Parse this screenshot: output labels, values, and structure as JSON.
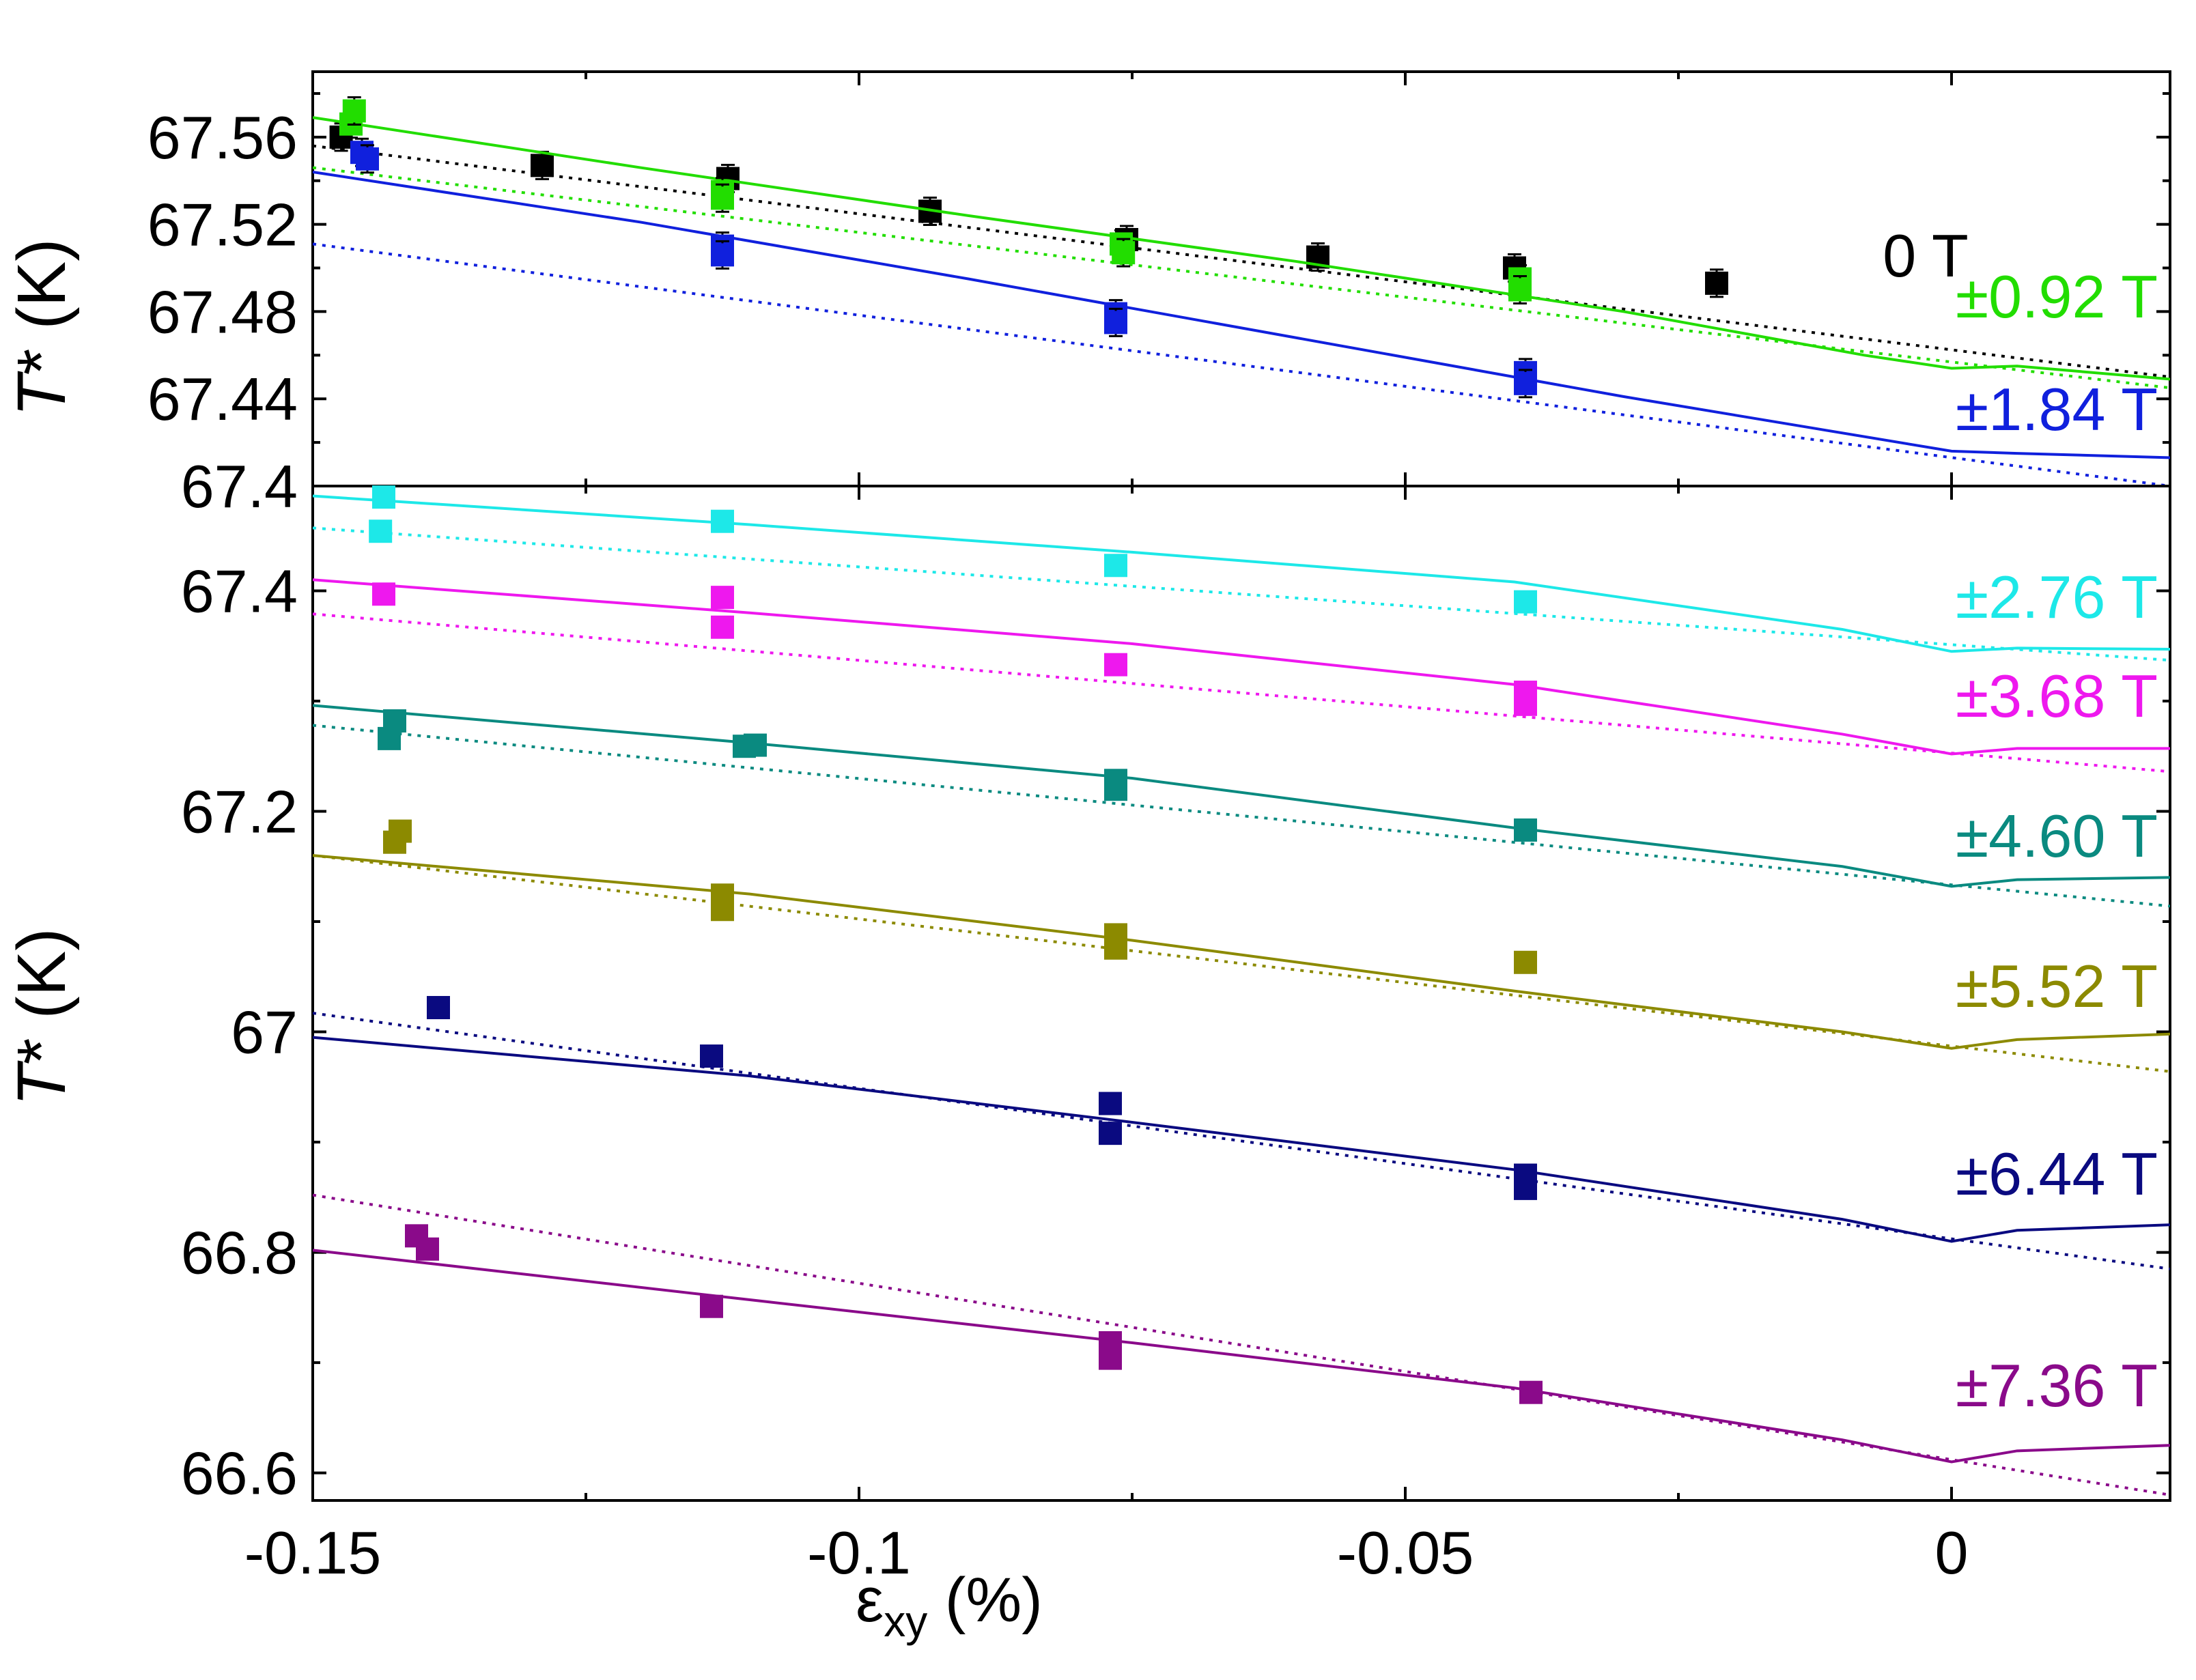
{
  "chart_data": {
    "type": "scatter",
    "x_label_main": "ε",
    "x_label_sub": "xy",
    "x_label_unit": " (%)",
    "y_label_italic": "T",
    "y_label_rest": "* (K)",
    "xlim": [
      -0.15,
      0.02
    ],
    "x_ticks": [
      -0.15,
      -0.1,
      -0.05,
      0
    ],
    "x_tick_labels": [
      "-0.15",
      "-0.1",
      "-0.05",
      "0"
    ],
    "panels": [
      {
        "name": "top",
        "ylim": [
          67.4,
          67.59
        ],
        "y_ticks": [
          67.4,
          67.44,
          67.48,
          67.52,
          67.56
        ],
        "y_tick_labels": [
          "67.4",
          "67.44",
          "67.48",
          "67.52",
          "67.56"
        ],
        "series": [
          {
            "name": "0 T",
            "label": "0 T",
            "color": "#000000",
            "error_bars": true,
            "points": [
              [
                -0.1474,
                67.56
              ],
              [
                -0.129,
                67.547
              ],
              [
                -0.112,
                67.541
              ],
              [
                -0.0935,
                67.526
              ],
              [
                -0.0755,
                67.513
              ],
              [
                -0.058,
                67.505
              ],
              [
                -0.04,
                67.5
              ],
              [
                -0.0215,
                67.493
              ]
            ],
            "fit": [
              [
                -0.15,
                67.556
              ],
              [
                0.02,
                67.45
              ]
            ],
            "model": [
              [
                -0.15,
                67.565
              ],
              [
                0.02,
                67.445
              ]
            ]
          },
          {
            "name": "±0.92 T",
            "label": "±0.92 T",
            "color": "#22dd00",
            "error_bars": true,
            "points": [
              [
                -0.1465,
                67.566
              ],
              [
                -0.1462,
                67.572
              ],
              [
                -0.1125,
                67.535
              ],
              [
                -0.1125,
                67.532
              ],
              [
                -0.076,
                67.511
              ],
              [
                -0.0758,
                67.507
              ],
              [
                -0.0395,
                67.495
              ],
              [
                -0.0395,
                67.49
              ]
            ],
            "fit": [
              [
                -0.15,
                67.546
              ],
              [
                0.02,
                67.445
              ]
            ],
            "model": [
              [
                -0.15,
                67.569
              ],
              [
                -0.12,
                67.546
              ],
              [
                -0.09,
                67.524
              ],
              [
                -0.06,
                67.503
              ],
              [
                -0.03,
                67.48
              ],
              [
                -0.008,
                67.46
              ],
              [
                0,
                67.454
              ],
              [
                0.006,
                67.455
              ],
              [
                0.02,
                67.449
              ]
            ]
          },
          {
            "name": "±1.84 T",
            "label": "±1.84 T",
            "color": "#1020dd",
            "error_bars": true,
            "points": [
              [
                -0.1455,
                67.553
              ],
              [
                -0.145,
                67.55
              ],
              [
                -0.1125,
                67.51
              ],
              [
                -0.1125,
                67.506
              ],
              [
                -0.0765,
                67.479
              ],
              [
                -0.0765,
                67.475
              ],
              [
                -0.039,
                67.452
              ],
              [
                -0.039,
                67.447
              ]
            ],
            "fit": [
              [
                -0.15,
                67.511
              ],
              [
                0.02,
                67.4
              ]
            ],
            "model": [
              [
                -0.15,
                67.544
              ],
              [
                -0.12,
                67.521
              ],
              [
                -0.09,
                67.495
              ],
              [
                -0.06,
                67.468
              ],
              [
                -0.03,
                67.441
              ],
              [
                -0.012,
                67.426
              ],
              [
                0,
                67.416
              ],
              [
                0.006,
                67.415
              ],
              [
                0.02,
                67.413
              ]
            ]
          }
        ]
      },
      {
        "name": "bottom",
        "ylim": [
          66.575,
          67.495
        ],
        "y_ticks": [
          66.6,
          66.8,
          67.0,
          67.2,
          67.4
        ],
        "y_tick_labels": [
          "66.6",
          "66.8",
          "67",
          "67.2",
          "67.4"
        ],
        "series": [
          {
            "name": "±2.76 T",
            "label": "±2.76 T",
            "color": "#1de8e8",
            "error_bars": false,
            "points": [
              [
                -0.1435,
                67.485
              ],
              [
                -0.1438,
                67.454
              ],
              [
                -0.1125,
                67.463
              ],
              [
                -0.0765,
                67.423
              ],
              [
                -0.039,
                67.39
              ]
            ],
            "fit": [
              [
                -0.15,
                67.457
              ],
              [
                0.02,
                67.337
              ]
            ],
            "model": [
              [
                -0.15,
                67.486
              ],
              [
                -0.11,
                67.46
              ],
              [
                -0.075,
                67.435
              ],
              [
                -0.04,
                67.408
              ],
              [
                -0.01,
                67.365
              ],
              [
                0,
                67.345
              ],
              [
                0.006,
                67.348
              ],
              [
                0.02,
                67.347
              ]
            ]
          },
          {
            "name": "±3.68 T",
            "label": "±3.68 T",
            "color": "#ee18ee",
            "error_bars": false,
            "points": [
              [
                -0.1435,
                67.397
              ],
              [
                -0.1125,
                67.394
              ],
              [
                -0.1125,
                67.367
              ],
              [
                -0.0765,
                67.333
              ],
              [
                -0.039,
                67.308
              ],
              [
                -0.039,
                67.297
              ]
            ],
            "fit": [
              [
                -0.15,
                67.379
              ],
              [
                0.02,
                67.236
              ]
            ],
            "model": [
              [
                -0.15,
                67.41
              ],
              [
                -0.11,
                67.38
              ],
              [
                -0.075,
                67.352
              ],
              [
                -0.04,
                67.315
              ],
              [
                -0.01,
                67.27
              ],
              [
                0,
                67.252
              ],
              [
                0.006,
                67.257
              ],
              [
                0.02,
                67.257
              ]
            ]
          },
          {
            "name": "±4.60 T",
            "label": "±4.60 T",
            "color": "#0a8a80",
            "error_bars": false,
            "points": [
              [
                -0.1425,
                67.282
              ],
              [
                -0.143,
                67.266
              ],
              [
                -0.1105,
                67.259
              ],
              [
                -0.1095,
                67.26
              ],
              [
                -0.0765,
                67.228
              ],
              [
                -0.0765,
                67.22
              ],
              [
                -0.039,
                67.183
              ]
            ],
            "fit": [
              [
                -0.15,
                67.278
              ],
              [
                0.02,
                67.114
              ]
            ],
            "model": [
              [
                -0.15,
                67.296
              ],
              [
                -0.11,
                67.262
              ],
              [
                -0.075,
                67.23
              ],
              [
                -0.04,
                67.185
              ],
              [
                -0.01,
                67.15
              ],
              [
                0,
                67.132
              ],
              [
                0.006,
                67.138
              ],
              [
                0.02,
                67.14
              ]
            ]
          },
          {
            "name": "±5.52 T",
            "label": "±5.52 T",
            "color": "#8c8a00",
            "error_bars": false,
            "points": [
              [
                -0.142,
                67.182
              ],
              [
                -0.1425,
                67.172
              ],
              [
                -0.1125,
                67.124
              ],
              [
                -0.1125,
                67.111
              ],
              [
                -0.0765,
                67.088
              ],
              [
                -0.0765,
                67.076
              ],
              [
                -0.039,
                67.063
              ]
            ],
            "fit": [
              [
                -0.15,
                67.16
              ],
              [
                0.02,
                66.964
              ]
            ],
            "model": [
              [
                -0.15,
                67.16
              ],
              [
                -0.11,
                67.125
              ],
              [
                -0.075,
                67.083
              ],
              [
                -0.04,
                67.037
              ],
              [
                -0.01,
                67.0
              ],
              [
                0,
                66.985
              ],
              [
                0.006,
                66.993
              ],
              [
                0.02,
                66.998
              ]
            ]
          },
          {
            "name": "±6.44 T",
            "label": "±6.44 T",
            "color": "#0a0a80",
            "error_bars": false,
            "points": [
              [
                -0.1385,
                67.022
              ],
              [
                -0.1135,
                66.978
              ],
              [
                -0.077,
                66.935
              ],
              [
                -0.077,
                66.908
              ],
              [
                -0.039,
                66.87
              ],
              [
                -0.039,
                66.858
              ]
            ],
            "fit": [
              [
                -0.15,
                67.017
              ],
              [
                0.02,
                66.785
              ]
            ],
            "model": [
              [
                -0.15,
                66.995
              ],
              [
                -0.11,
                66.96
              ],
              [
                -0.075,
                66.918
              ],
              [
                -0.04,
                66.875
              ],
              [
                -0.01,
                66.83
              ],
              [
                0,
                66.81
              ],
              [
                0.006,
                66.82
              ],
              [
                0.02,
                66.825
              ]
            ]
          },
          {
            "name": "±7.36 T",
            "label": "±7.36 T",
            "color": "#8a0a8a",
            "error_bars": false,
            "points": [
              [
                -0.1405,
                66.815
              ],
              [
                -0.1395,
                66.803
              ],
              [
                -0.1135,
                66.751
              ],
              [
                -0.077,
                66.718
              ],
              [
                -0.077,
                66.704
              ],
              [
                -0.0385,
                66.673
              ]
            ],
            "fit": [
              [
                -0.15,
                66.852
              ],
              [
                0.02,
                66.58
              ]
            ],
            "model": [
              [
                -0.15,
                66.802
              ],
              [
                -0.11,
                66.757
              ],
              [
                -0.075,
                66.718
              ],
              [
                -0.04,
                66.677
              ],
              [
                -0.01,
                66.63
              ],
              [
                0,
                66.61
              ],
              [
                0.006,
                66.62
              ],
              [
                0.02,
                66.625
              ]
            ]
          }
        ]
      }
    ]
  }
}
